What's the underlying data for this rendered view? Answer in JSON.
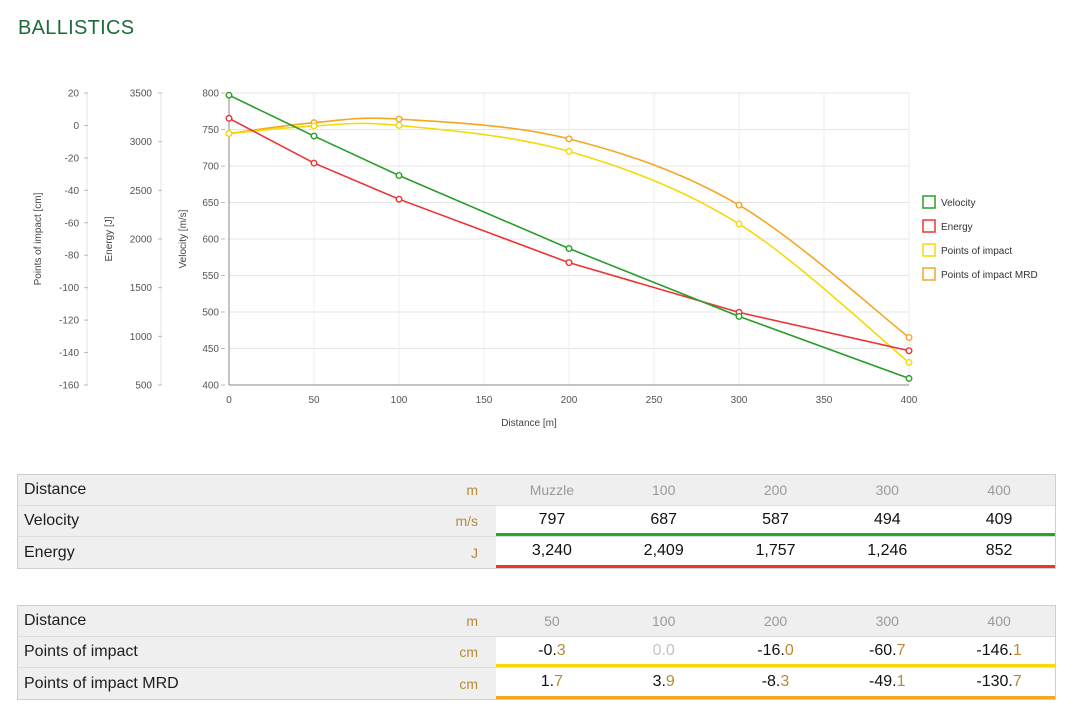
{
  "title": "BALLISTICS",
  "colors": {
    "velocity": "#2a9d2a",
    "energy": "#ee3333",
    "poi": "#f5d90a",
    "poi_mrd": "#f5a623"
  },
  "chart_data": {
    "type": "line",
    "xlabel": "Distance [m]",
    "x_ticks": [
      "0",
      "50",
      "100",
      "150",
      "200",
      "250",
      "300",
      "350",
      "400"
    ],
    "xlim": [
      0,
      400
    ],
    "grid": true,
    "legend_position": "right",
    "axes": [
      {
        "id": "poi",
        "label": "Points of impact [cm]",
        "ylim": [
          -160,
          20
        ],
        "ticks": [
          "20",
          "0",
          "-20",
          "-40",
          "-60",
          "-80",
          "-100",
          "-120",
          "-140",
          "-160"
        ]
      },
      {
        "id": "energy",
        "label": "Energy [J]",
        "ylim": [
          500,
          3500
        ],
        "ticks": [
          "3500",
          "3000",
          "2500",
          "2000",
          "1500",
          "1000",
          "500"
        ]
      },
      {
        "id": "velocity",
        "label": "Velocity [m/s]",
        "ylim": [
          400,
          800
        ],
        "ticks": [
          "800",
          "750",
          "700",
          "650",
          "600",
          "550",
          "500",
          "450",
          "400"
        ]
      }
    ],
    "series": [
      {
        "name": "Velocity",
        "axis": "velocity",
        "color": "#2a9d2a",
        "x": [
          0,
          50,
          100,
          200,
          300,
          400
        ],
        "y": [
          797,
          741,
          687,
          587,
          494,
          409
        ]
      },
      {
        "name": "Energy",
        "axis": "energy",
        "color": "#ee3333",
        "x": [
          0,
          50,
          100,
          200,
          300,
          400
        ],
        "y": [
          3240,
          2780,
          2409,
          1757,
          1246,
          852
        ]
      },
      {
        "name": "Points of impact",
        "axis": "poi",
        "color": "#f5d90a",
        "x": [
          0,
          50,
          100,
          200,
          300,
          400
        ],
        "y": [
          -5,
          -0.3,
          0.0,
          -16.0,
          -60.7,
          -146.1
        ]
      },
      {
        "name": "Points of impact MRD",
        "axis": "poi",
        "color": "#f5a623",
        "x": [
          0,
          50,
          100,
          200,
          300,
          400
        ],
        "y": [
          -5,
          1.7,
          3.9,
          -8.3,
          -49.1,
          -130.7
        ]
      }
    ]
  },
  "table1": {
    "header": {
      "label": "Distance",
      "unit": "m",
      "cells": [
        "Muzzle",
        "100",
        "200",
        "300",
        "400"
      ]
    },
    "velocity": {
      "label": "Velocity",
      "unit": "m/s",
      "cells": [
        "797",
        "687",
        "587",
        "494",
        "409"
      ]
    },
    "energy": {
      "label": "Energy",
      "unit": "J",
      "cells": [
        "3,240",
        "2,409",
        "1,757",
        "1,246",
        "852"
      ]
    }
  },
  "table2": {
    "header": {
      "label": "Distance",
      "unit": "m",
      "cells": [
        "50",
        "100",
        "200",
        "300",
        "400"
      ]
    },
    "poi": {
      "label": "Points of impact",
      "unit": "cm",
      "cells": [
        {
          "int": "-0.",
          "dec": "3"
        },
        {
          "int": "0.",
          "dec": "0"
        },
        {
          "int": "-16.",
          "dec": "0"
        },
        {
          "int": "-60.",
          "dec": "7"
        },
        {
          "int": "-146.",
          "dec": "1"
        }
      ]
    },
    "poi_mrd": {
      "label": "Points of impact MRD",
      "unit": "cm",
      "cells": [
        {
          "int": "1.",
          "dec": "7"
        },
        {
          "int": "3.",
          "dec": "9"
        },
        {
          "int": "-8.",
          "dec": "3"
        },
        {
          "int": "-49.",
          "dec": "1"
        },
        {
          "int": "-130.",
          "dec": "7"
        }
      ]
    }
  }
}
